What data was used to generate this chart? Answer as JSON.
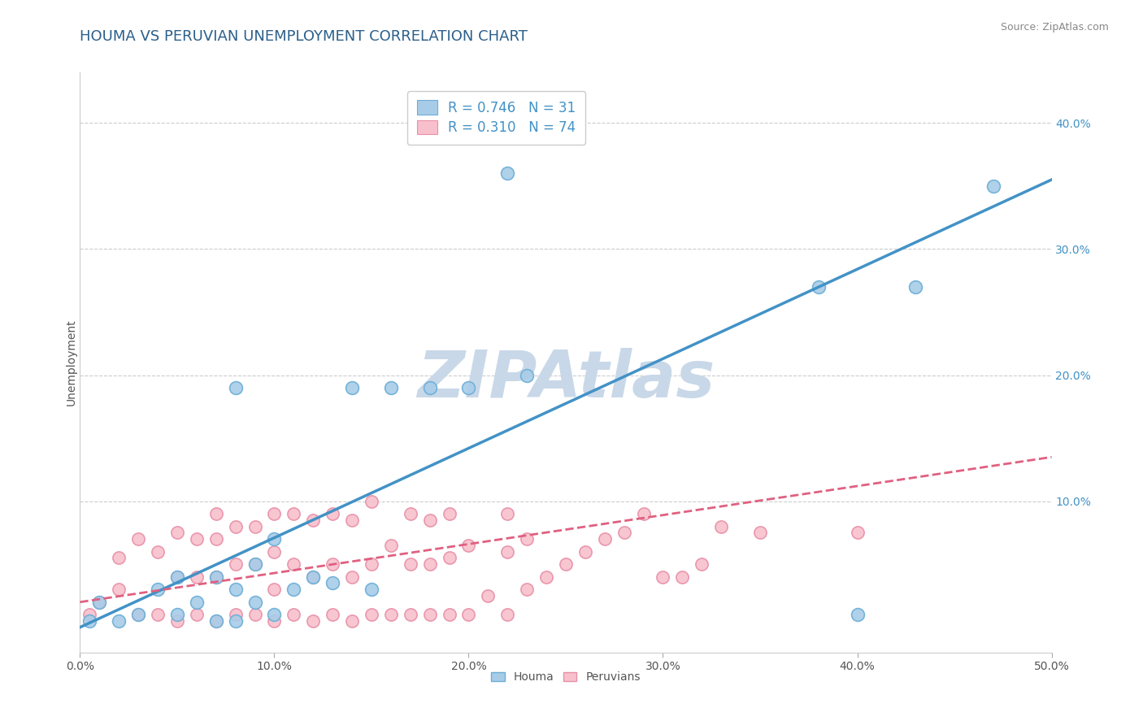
{
  "title": "HOUMA VS PERUVIAN UNEMPLOYMENT CORRELATION CHART",
  "source_text": "Source: ZipAtlas.com",
  "ylabel": "Unemployment",
  "xlim": [
    0.0,
    0.5
  ],
  "ylim": [
    -0.02,
    0.44
  ],
  "xticks": [
    0.0,
    0.1,
    0.2,
    0.3,
    0.4,
    0.5
  ],
  "xtick_labels": [
    "0.0%",
    "10.0%",
    "20.0%",
    "30.0%",
    "40.0%",
    "50.0%"
  ],
  "yticks": [
    0.1,
    0.2,
    0.3,
    0.4
  ],
  "ytick_labels": [
    "10.0%",
    "20.0%",
    "30.0%",
    "40.0%"
  ],
  "houma_R": 0.746,
  "houma_N": 31,
  "peruvian_R": 0.31,
  "peruvian_N": 74,
  "houma_color": "#a8cce8",
  "houma_edge_color": "#6baed6",
  "houma_line_color": "#4292c6",
  "peruvian_color": "#f8c0cc",
  "peruvian_edge_color": "#e890a8",
  "peruvian_line_color": "#e06080",
  "background_color": "#ffffff",
  "grid_color": "#cccccc",
  "watermark": "ZIPAtlas",
  "watermark_color": "#c8d8e8",
  "legend_label_houma": "R = 0.746   N = 31",
  "legend_label_peruvian": "R = 0.310   N = 74",
  "houma_scatter_x": [
    0.005,
    0.01,
    0.02,
    0.03,
    0.04,
    0.05,
    0.05,
    0.06,
    0.07,
    0.07,
    0.08,
    0.08,
    0.08,
    0.09,
    0.09,
    0.1,
    0.1,
    0.11,
    0.12,
    0.13,
    0.14,
    0.15,
    0.16,
    0.18,
    0.2,
    0.22,
    0.23,
    0.38,
    0.4,
    0.43,
    0.47
  ],
  "houma_scatter_y": [
    0.005,
    0.02,
    0.005,
    0.01,
    0.03,
    0.01,
    0.04,
    0.02,
    0.005,
    0.04,
    0.005,
    0.03,
    0.19,
    0.02,
    0.05,
    0.01,
    0.07,
    0.03,
    0.04,
    0.035,
    0.19,
    0.03,
    0.19,
    0.19,
    0.19,
    0.36,
    0.2,
    0.27,
    0.01,
    0.27,
    0.35
  ],
  "peruvian_scatter_x": [
    0.005,
    0.01,
    0.02,
    0.02,
    0.03,
    0.03,
    0.04,
    0.04,
    0.05,
    0.05,
    0.05,
    0.06,
    0.06,
    0.06,
    0.07,
    0.07,
    0.07,
    0.07,
    0.08,
    0.08,
    0.08,
    0.09,
    0.09,
    0.09,
    0.1,
    0.1,
    0.1,
    0.1,
    0.11,
    0.11,
    0.11,
    0.12,
    0.12,
    0.12,
    0.13,
    0.13,
    0.13,
    0.14,
    0.14,
    0.14,
    0.15,
    0.15,
    0.15,
    0.16,
    0.16,
    0.17,
    0.17,
    0.17,
    0.18,
    0.18,
    0.18,
    0.19,
    0.19,
    0.19,
    0.2,
    0.2,
    0.21,
    0.22,
    0.22,
    0.22,
    0.23,
    0.23,
    0.24,
    0.25,
    0.26,
    0.27,
    0.28,
    0.29,
    0.3,
    0.31,
    0.33,
    0.35,
    0.4,
    0.32
  ],
  "peruvian_scatter_y": [
    0.01,
    0.02,
    0.03,
    0.055,
    0.01,
    0.07,
    0.01,
    0.06,
    0.005,
    0.04,
    0.075,
    0.01,
    0.04,
    0.07,
    0.005,
    0.04,
    0.07,
    0.09,
    0.01,
    0.05,
    0.08,
    0.01,
    0.05,
    0.08,
    0.005,
    0.03,
    0.06,
    0.09,
    0.01,
    0.05,
    0.09,
    0.005,
    0.04,
    0.085,
    0.01,
    0.05,
    0.09,
    0.005,
    0.04,
    0.085,
    0.01,
    0.05,
    0.1,
    0.01,
    0.065,
    0.01,
    0.05,
    0.09,
    0.01,
    0.05,
    0.085,
    0.01,
    0.055,
    0.09,
    0.01,
    0.065,
    0.025,
    0.01,
    0.06,
    0.09,
    0.03,
    0.07,
    0.04,
    0.05,
    0.06,
    0.07,
    0.075,
    0.09,
    0.04,
    0.04,
    0.08,
    0.075,
    0.075,
    0.05
  ],
  "houma_line_x0": 0.0,
  "houma_line_y0": 0.0,
  "houma_line_x1": 0.5,
  "houma_line_y1": 0.355,
  "peruvian_line_x0": 0.0,
  "peruvian_line_y0": 0.02,
  "peruvian_line_x1": 0.5,
  "peruvian_line_y1": 0.135,
  "title_fontsize": 13,
  "axis_label_fontsize": 10,
  "tick_fontsize": 10,
  "legend_fontsize": 12,
  "source_fontsize": 9
}
